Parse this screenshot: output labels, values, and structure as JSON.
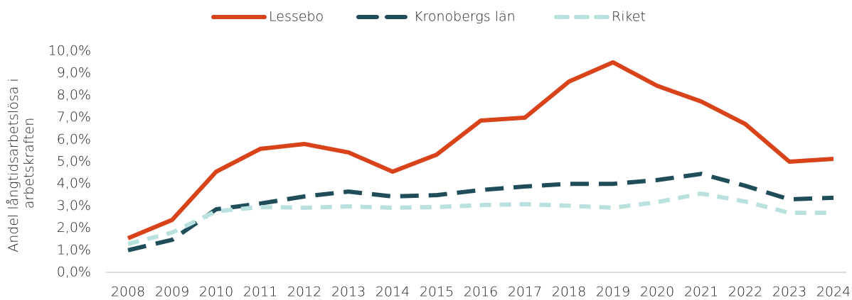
{
  "chart_data": {
    "type": "line",
    "ylabel": [
      "Andel långtidsarbetslösa i",
      "arbetskraften"
    ],
    "categories": [
      "2008",
      "2009",
      "2010",
      "2011",
      "2012",
      "2013",
      "2014",
      "2015",
      "2016",
      "2017",
      "2018",
      "2019",
      "2020",
      "2021",
      "2022",
      "2023",
      "2024"
    ],
    "series": [
      {
        "name": "Lessebo",
        "color": "#d9431a",
        "dash": "solid",
        "values": [
          1.54,
          2.37,
          4.55,
          5.58,
          5.8,
          5.42,
          4.55,
          5.32,
          6.86,
          6.99,
          8.62,
          9.49,
          8.43,
          7.72,
          6.7,
          5.0,
          5.13
        ]
      },
      {
        "name": "Kronobergs län",
        "color": "#1f4e5a",
        "dash": "long",
        "values": [
          1.0,
          1.47,
          2.85,
          3.11,
          3.43,
          3.65,
          3.43,
          3.49,
          3.72,
          3.88,
          4.0,
          4.0,
          4.17,
          4.45,
          3.91,
          3.3,
          3.37
        ]
      },
      {
        "name": "Riket",
        "color": "#b9e1de",
        "dash": "short",
        "values": [
          1.28,
          1.8,
          2.76,
          2.95,
          2.92,
          2.98,
          2.92,
          2.95,
          3.04,
          3.08,
          3.01,
          2.92,
          3.17,
          3.56,
          3.2,
          2.69,
          2.69
        ]
      }
    ],
    "ylim": [
      0,
      10
    ],
    "yticks": [
      {
        "value": 0,
        "label": "0,0%"
      },
      {
        "value": 1,
        "label": "1,0%"
      },
      {
        "value": 2,
        "label": "2,0%"
      },
      {
        "value": 3,
        "label": "3,0%"
      },
      {
        "value": 4,
        "label": "4,0%"
      },
      {
        "value": 5,
        "label": "5,0%"
      },
      {
        "value": 6,
        "label": "6,0%"
      },
      {
        "value": 7,
        "label": "7,0%"
      },
      {
        "value": 8,
        "label": "8,0%"
      },
      {
        "value": 9,
        "label": "9,0%"
      },
      {
        "value": 10,
        "label": "10,0%"
      }
    ],
    "grid": false,
    "legend": "top"
  }
}
